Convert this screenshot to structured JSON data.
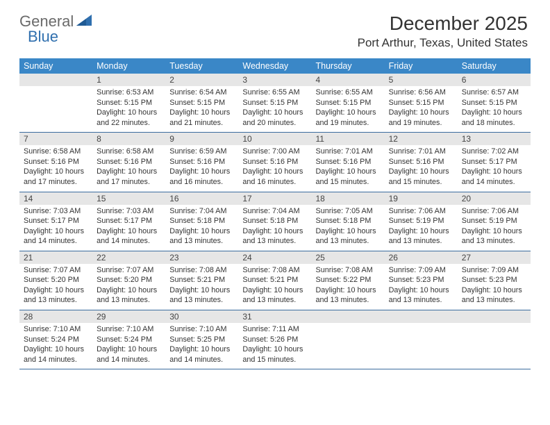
{
  "logo": {
    "text1": "General",
    "text2": "Blue"
  },
  "title": {
    "month": "December 2025",
    "location": "Port Arthur, Texas, United States"
  },
  "colors": {
    "header_bg": "#3a87c7",
    "header_text": "#ffffff",
    "daynum_bg": "#e6e6e6",
    "row_border": "#3a6c9e",
    "logo_gray": "#6a6a6a",
    "logo_blue": "#2f6fae"
  },
  "headers": [
    "Sunday",
    "Monday",
    "Tuesday",
    "Wednesday",
    "Thursday",
    "Friday",
    "Saturday"
  ],
  "weeks": [
    [
      {
        "num": "",
        "empty": true
      },
      {
        "num": "1",
        "sunrise": "Sunrise: 6:53 AM",
        "sunset": "Sunset: 5:15 PM",
        "day1": "Daylight: 10 hours",
        "day2": "and 22 minutes."
      },
      {
        "num": "2",
        "sunrise": "Sunrise: 6:54 AM",
        "sunset": "Sunset: 5:15 PM",
        "day1": "Daylight: 10 hours",
        "day2": "and 21 minutes."
      },
      {
        "num": "3",
        "sunrise": "Sunrise: 6:55 AM",
        "sunset": "Sunset: 5:15 PM",
        "day1": "Daylight: 10 hours",
        "day2": "and 20 minutes."
      },
      {
        "num": "4",
        "sunrise": "Sunrise: 6:55 AM",
        "sunset": "Sunset: 5:15 PM",
        "day1": "Daylight: 10 hours",
        "day2": "and 19 minutes."
      },
      {
        "num": "5",
        "sunrise": "Sunrise: 6:56 AM",
        "sunset": "Sunset: 5:15 PM",
        "day1": "Daylight: 10 hours",
        "day2": "and 19 minutes."
      },
      {
        "num": "6",
        "sunrise": "Sunrise: 6:57 AM",
        "sunset": "Sunset: 5:15 PM",
        "day1": "Daylight: 10 hours",
        "day2": "and 18 minutes."
      }
    ],
    [
      {
        "num": "7",
        "sunrise": "Sunrise: 6:58 AM",
        "sunset": "Sunset: 5:16 PM",
        "day1": "Daylight: 10 hours",
        "day2": "and 17 minutes."
      },
      {
        "num": "8",
        "sunrise": "Sunrise: 6:58 AM",
        "sunset": "Sunset: 5:16 PM",
        "day1": "Daylight: 10 hours",
        "day2": "and 17 minutes."
      },
      {
        "num": "9",
        "sunrise": "Sunrise: 6:59 AM",
        "sunset": "Sunset: 5:16 PM",
        "day1": "Daylight: 10 hours",
        "day2": "and 16 minutes."
      },
      {
        "num": "10",
        "sunrise": "Sunrise: 7:00 AM",
        "sunset": "Sunset: 5:16 PM",
        "day1": "Daylight: 10 hours",
        "day2": "and 16 minutes."
      },
      {
        "num": "11",
        "sunrise": "Sunrise: 7:01 AM",
        "sunset": "Sunset: 5:16 PM",
        "day1": "Daylight: 10 hours",
        "day2": "and 15 minutes."
      },
      {
        "num": "12",
        "sunrise": "Sunrise: 7:01 AM",
        "sunset": "Sunset: 5:16 PM",
        "day1": "Daylight: 10 hours",
        "day2": "and 15 minutes."
      },
      {
        "num": "13",
        "sunrise": "Sunrise: 7:02 AM",
        "sunset": "Sunset: 5:17 PM",
        "day1": "Daylight: 10 hours",
        "day2": "and 14 minutes."
      }
    ],
    [
      {
        "num": "14",
        "sunrise": "Sunrise: 7:03 AM",
        "sunset": "Sunset: 5:17 PM",
        "day1": "Daylight: 10 hours",
        "day2": "and 14 minutes."
      },
      {
        "num": "15",
        "sunrise": "Sunrise: 7:03 AM",
        "sunset": "Sunset: 5:17 PM",
        "day1": "Daylight: 10 hours",
        "day2": "and 14 minutes."
      },
      {
        "num": "16",
        "sunrise": "Sunrise: 7:04 AM",
        "sunset": "Sunset: 5:18 PM",
        "day1": "Daylight: 10 hours",
        "day2": "and 13 minutes."
      },
      {
        "num": "17",
        "sunrise": "Sunrise: 7:04 AM",
        "sunset": "Sunset: 5:18 PM",
        "day1": "Daylight: 10 hours",
        "day2": "and 13 minutes."
      },
      {
        "num": "18",
        "sunrise": "Sunrise: 7:05 AM",
        "sunset": "Sunset: 5:18 PM",
        "day1": "Daylight: 10 hours",
        "day2": "and 13 minutes."
      },
      {
        "num": "19",
        "sunrise": "Sunrise: 7:06 AM",
        "sunset": "Sunset: 5:19 PM",
        "day1": "Daylight: 10 hours",
        "day2": "and 13 minutes."
      },
      {
        "num": "20",
        "sunrise": "Sunrise: 7:06 AM",
        "sunset": "Sunset: 5:19 PM",
        "day1": "Daylight: 10 hours",
        "day2": "and 13 minutes."
      }
    ],
    [
      {
        "num": "21",
        "sunrise": "Sunrise: 7:07 AM",
        "sunset": "Sunset: 5:20 PM",
        "day1": "Daylight: 10 hours",
        "day2": "and 13 minutes."
      },
      {
        "num": "22",
        "sunrise": "Sunrise: 7:07 AM",
        "sunset": "Sunset: 5:20 PM",
        "day1": "Daylight: 10 hours",
        "day2": "and 13 minutes."
      },
      {
        "num": "23",
        "sunrise": "Sunrise: 7:08 AM",
        "sunset": "Sunset: 5:21 PM",
        "day1": "Daylight: 10 hours",
        "day2": "and 13 minutes."
      },
      {
        "num": "24",
        "sunrise": "Sunrise: 7:08 AM",
        "sunset": "Sunset: 5:21 PM",
        "day1": "Daylight: 10 hours",
        "day2": "and 13 minutes."
      },
      {
        "num": "25",
        "sunrise": "Sunrise: 7:08 AM",
        "sunset": "Sunset: 5:22 PM",
        "day1": "Daylight: 10 hours",
        "day2": "and 13 minutes."
      },
      {
        "num": "26",
        "sunrise": "Sunrise: 7:09 AM",
        "sunset": "Sunset: 5:23 PM",
        "day1": "Daylight: 10 hours",
        "day2": "and 13 minutes."
      },
      {
        "num": "27",
        "sunrise": "Sunrise: 7:09 AM",
        "sunset": "Sunset: 5:23 PM",
        "day1": "Daylight: 10 hours",
        "day2": "and 13 minutes."
      }
    ],
    [
      {
        "num": "28",
        "sunrise": "Sunrise: 7:10 AM",
        "sunset": "Sunset: 5:24 PM",
        "day1": "Daylight: 10 hours",
        "day2": "and 14 minutes."
      },
      {
        "num": "29",
        "sunrise": "Sunrise: 7:10 AM",
        "sunset": "Sunset: 5:24 PM",
        "day1": "Daylight: 10 hours",
        "day2": "and 14 minutes."
      },
      {
        "num": "30",
        "sunrise": "Sunrise: 7:10 AM",
        "sunset": "Sunset: 5:25 PM",
        "day1": "Daylight: 10 hours",
        "day2": "and 14 minutes."
      },
      {
        "num": "31",
        "sunrise": "Sunrise: 7:11 AM",
        "sunset": "Sunset: 5:26 PM",
        "day1": "Daylight: 10 hours",
        "day2": "and 15 minutes."
      },
      {
        "num": "",
        "empty": true
      },
      {
        "num": "",
        "empty": true
      },
      {
        "num": "",
        "empty": true
      }
    ]
  ]
}
